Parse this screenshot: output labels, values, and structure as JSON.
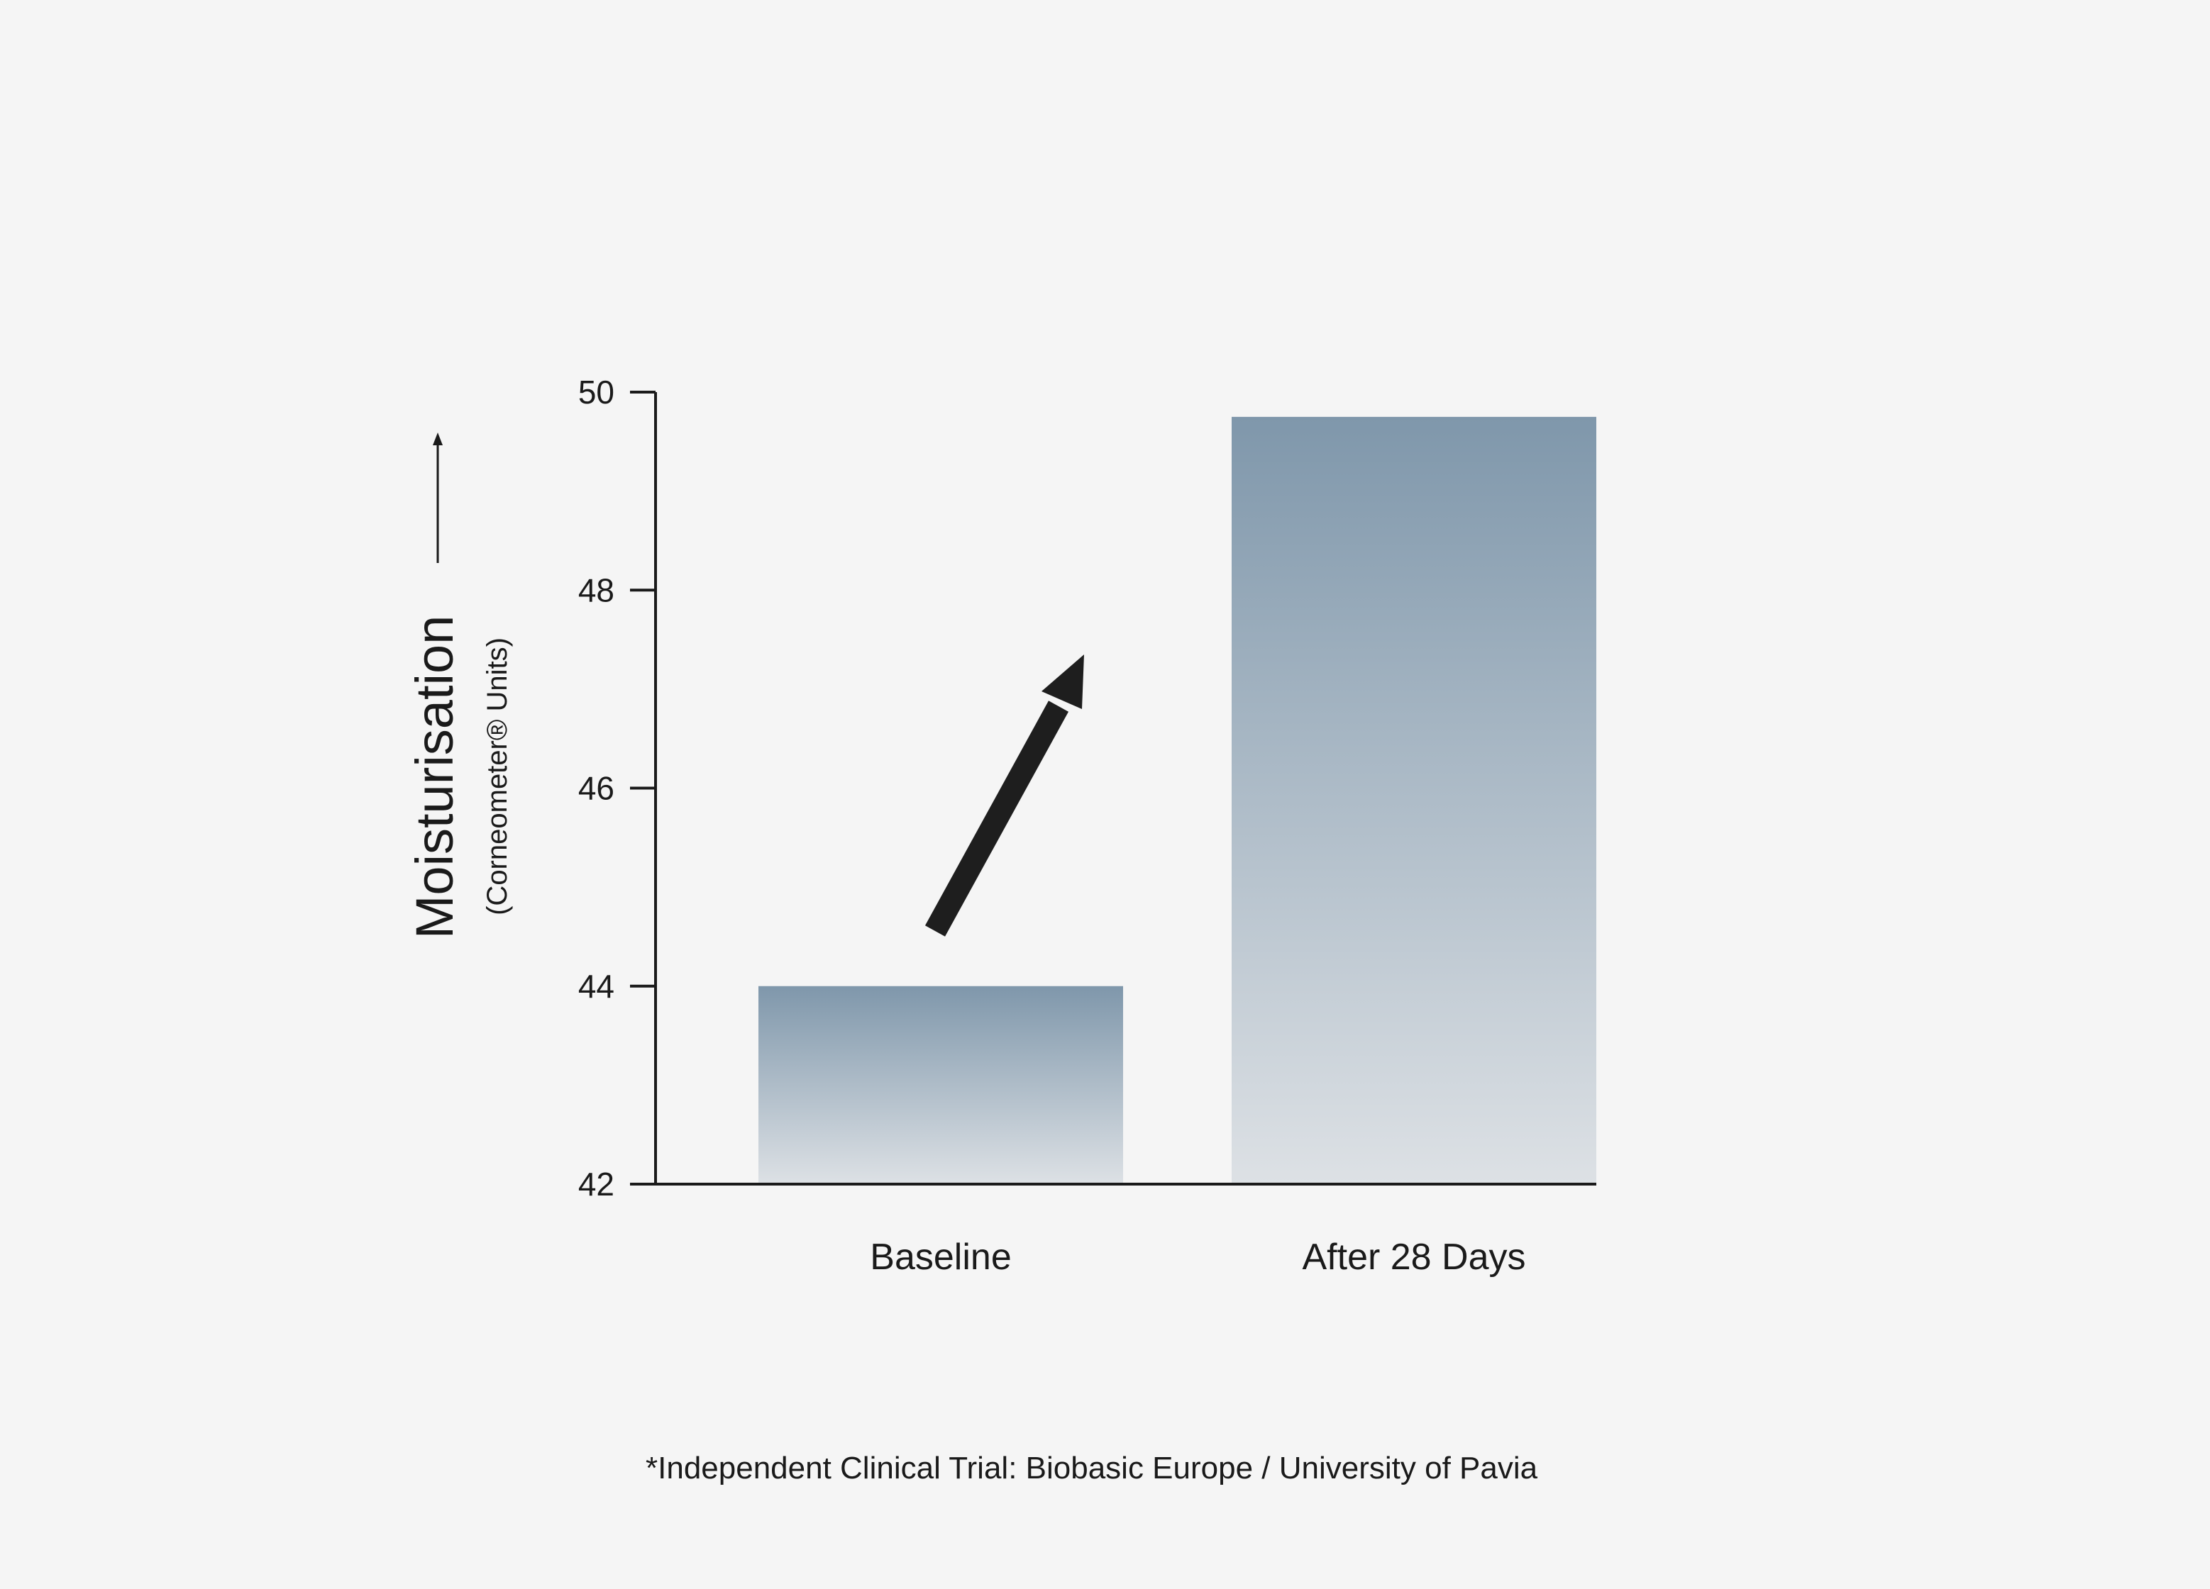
{
  "chart_data": {
    "type": "bar",
    "categories": [
      "Baseline",
      "After 28 Days"
    ],
    "values": [
      44,
      49.75
    ],
    "ylabel": "Moisturisation",
    "ylabel_sub": "(Corneometer® Units)",
    "ylim": [
      42,
      50
    ],
    "yticks": [
      "42",
      "44",
      "46",
      "48",
      "50"
    ],
    "grid": false,
    "legend": "none",
    "footnote": "*Independent Clinical Trial: Biobasic Europe / University of Pavia",
    "colors": {
      "bar_top": "#7f97ab",
      "bar_bottom": "#dde1e5",
      "axis": "#1a1a1a",
      "arrow": "#1e1e1e",
      "background": "#f5f5f5"
    },
    "annotation": "increase-arrow-icon"
  }
}
